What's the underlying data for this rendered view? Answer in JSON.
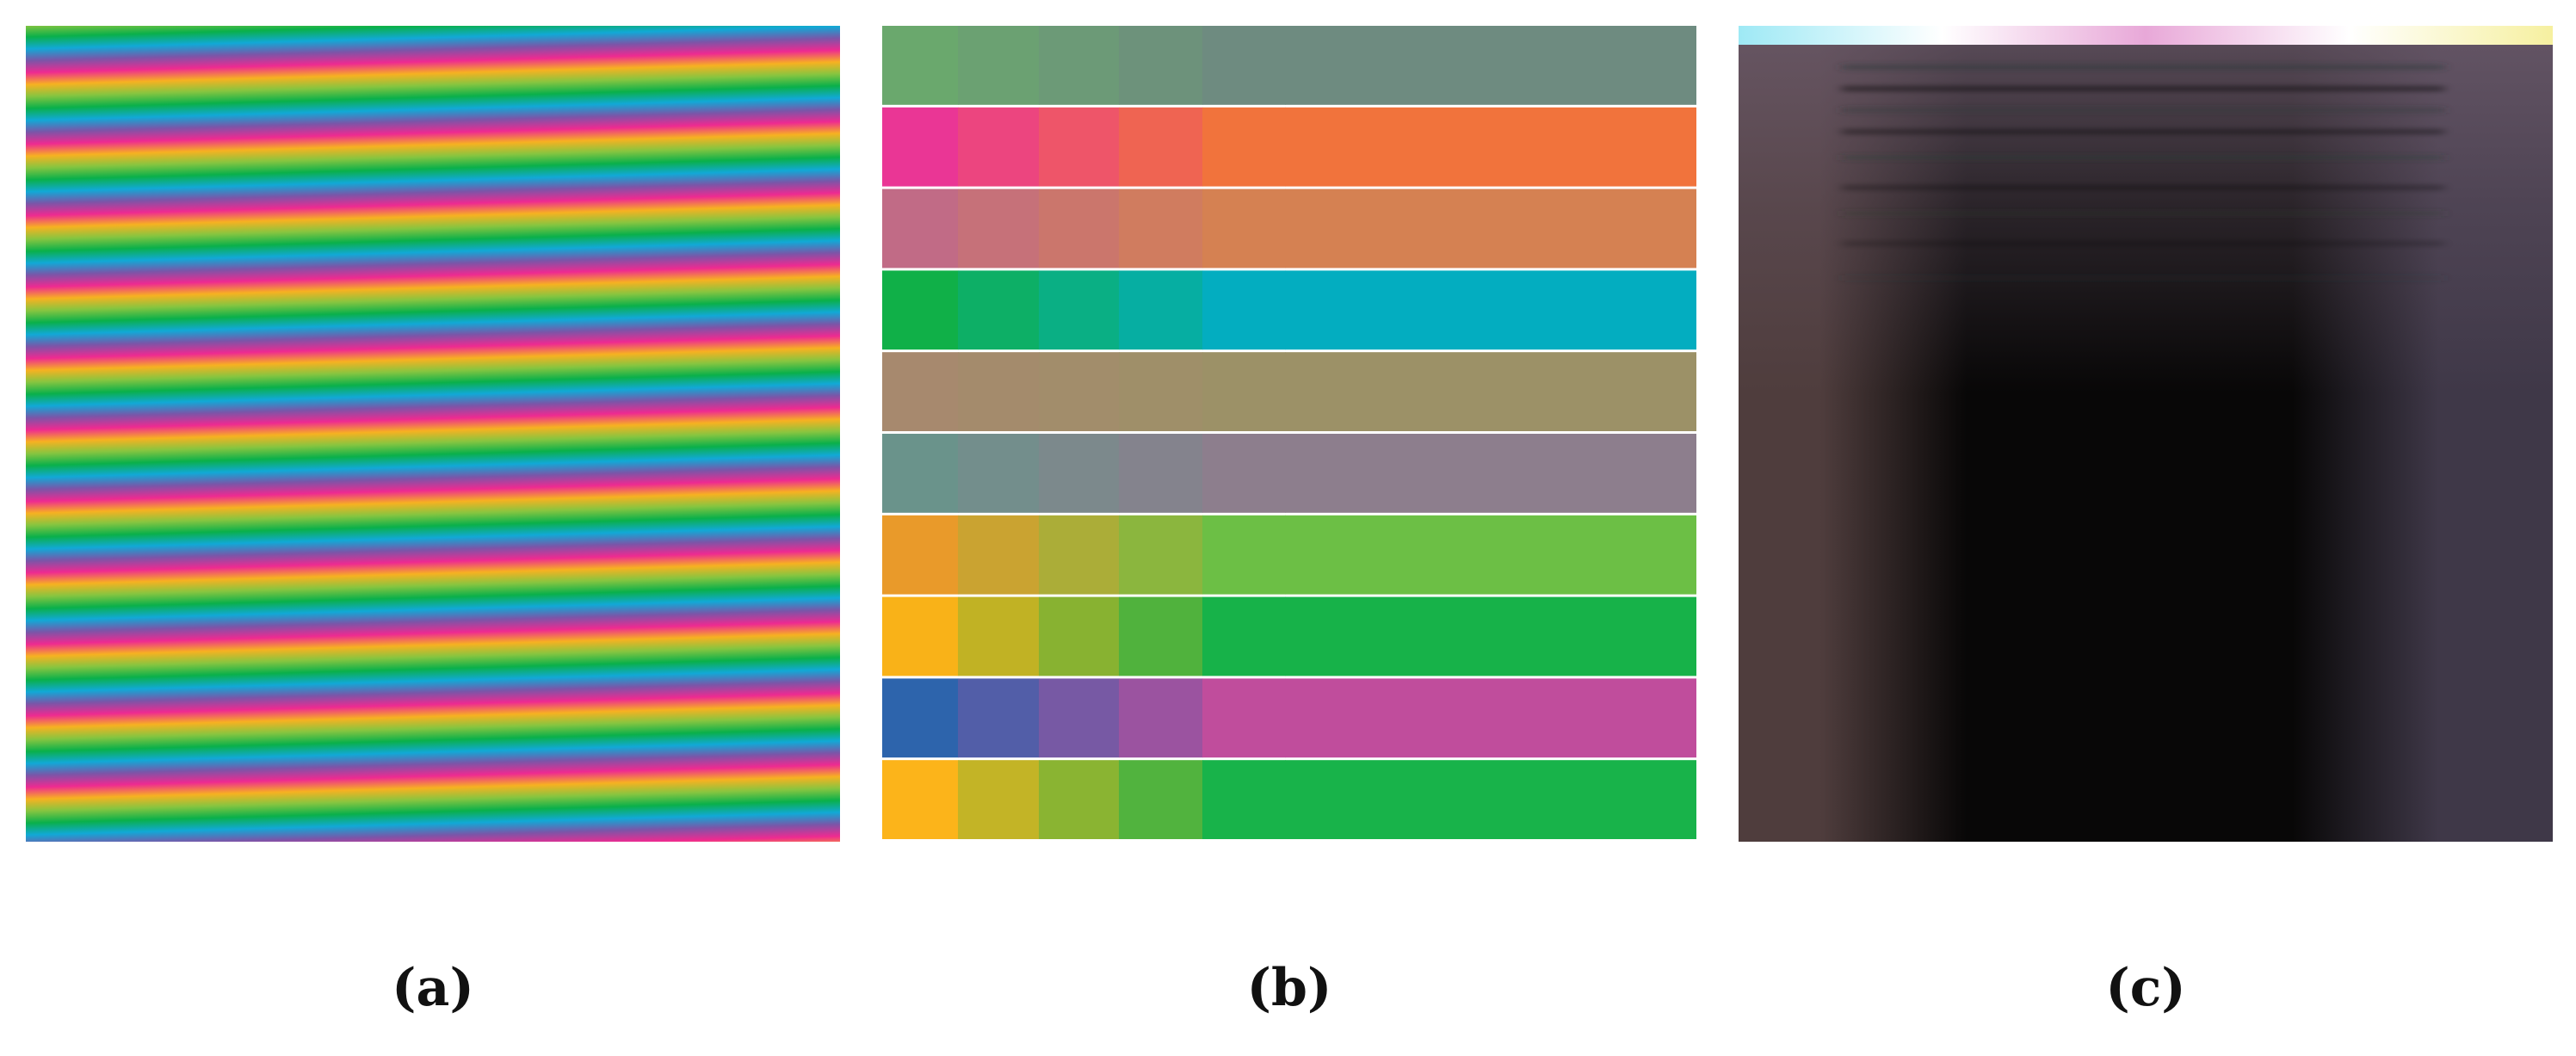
{
  "figure": {
    "panels": [
      {
        "id": "a",
        "caption": "(a)"
      },
      {
        "id": "b",
        "caption": "(b)"
      },
      {
        "id": "c",
        "caption": "(c)"
      }
    ]
  },
  "panel_a": {
    "stripe_cycle_colors": [
      "#0ab04a",
      "#11a9d6",
      "#7b55a8",
      "#ee2a91",
      "#f7b121",
      "#86c540",
      "#0ab04a"
    ]
  },
  "panel_b": {
    "rows": [
      {
        "start": "#6aa86d",
        "end": "#6e8b80"
      },
      {
        "start": "#ea3695",
        "end": "#f1733c"
      },
      {
        "start": "#c16b86",
        "end": "#d58152"
      },
      {
        "start": "#10b048",
        "end": "#03adc0"
      },
      {
        "start": "#a7896e",
        "end": "#9c9167"
      },
      {
        "start": "#6a938b",
        "end": "#8d7e8d"
      },
      {
        "start": "#e99a2a",
        "end": "#6cbf45"
      },
      {
        "start": "#f9b218",
        "end": "#17b249"
      },
      {
        "start": "#2d64ac",
        "end": "#c04d9c"
      },
      {
        "start": "#fcb41a",
        "end": "#18b34a"
      }
    ]
  },
  "panel_c": {
    "top_band_colors": [
      "#9ee9f5",
      "#ffffff",
      "#e8a8d8",
      "#ffffff",
      "#f6f0a0"
    ],
    "edge_left_color": "#4f3d3d",
    "edge_right_color": "#3f3848",
    "center_color": "#080707",
    "upper_tint_color": "#6b5a6a"
  }
}
